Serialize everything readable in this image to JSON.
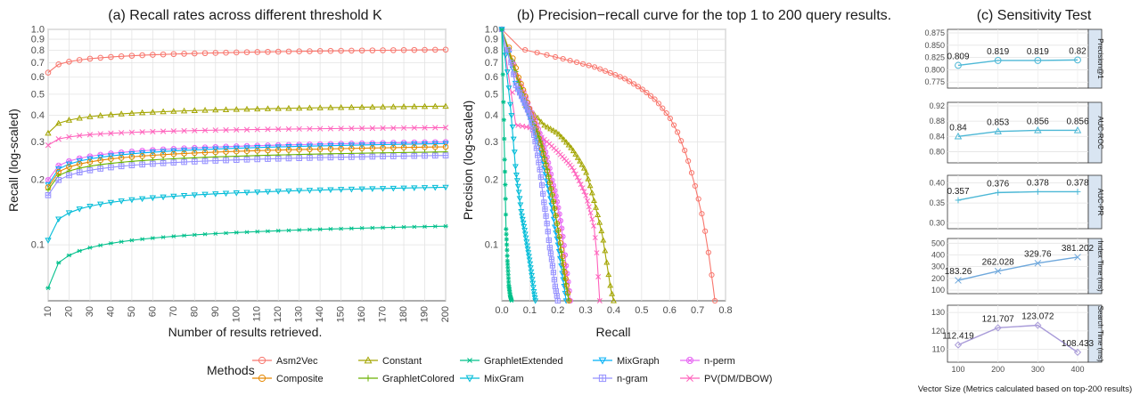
{
  "chart_data": [
    {
      "type": "line",
      "title": "(a) Recall rates across different threshold K",
      "xlabel": "Number of results retrieved.",
      "ylabel": "Recall (log-scaled)",
      "y_scale": "log",
      "xlim": [
        10,
        200
      ],
      "ylim": [
        0.055,
        1.0
      ],
      "x_ticks": [
        "10",
        "20",
        "30",
        "40",
        "50",
        "60",
        "70",
        "80",
        "90",
        "100",
        "110",
        "120",
        "130",
        "140",
        "150",
        "160",
        "170",
        "180",
        "190",
        "200"
      ],
      "y_ticks": [
        "0.1",
        "0.2",
        "0.3",
        "0.4",
        "0.5",
        "0.6",
        "0.7",
        "0.8",
        "0.9",
        "1.0"
      ],
      "grid": true,
      "series": [
        {
          "name": "Asm2Vec",
          "color": "#F8766D",
          "marker": "circle",
          "start": 0.63,
          "end": 0.805
        },
        {
          "name": "Constant",
          "color": "#A3A500",
          "marker": "triangle",
          "start": 0.33,
          "end": 0.44
        },
        {
          "name": "PV(DM/DBOW)",
          "color": "#FF62BC",
          "marker": "cross",
          "start": 0.29,
          "end": 0.35
        },
        {
          "name": "n-perm",
          "color": "#E76BF3",
          "marker": "circle-x",
          "start": 0.2,
          "end": 0.3
        },
        {
          "name": "MixGraph",
          "color": "#00B0F6",
          "marker": "triangle-down",
          "start": 0.19,
          "end": 0.295
        },
        {
          "name": "Composite",
          "color": "#E58700",
          "marker": "circle",
          "start": 0.185,
          "end": 0.285
        },
        {
          "name": "GraphletColored",
          "color": "#6BB100",
          "marker": "plus",
          "start": 0.18,
          "end": 0.27
        },
        {
          "name": "n-gram",
          "color": "#9590FF",
          "marker": "square-plus",
          "start": 0.17,
          "end": 0.26
        },
        {
          "name": "MixGram",
          "color": "#00BCD8",
          "marker": "triangle-down",
          "start": 0.105,
          "end": 0.185
        },
        {
          "name": "GraphletExtended",
          "color": "#00C08B",
          "marker": "asterisk",
          "start": 0.063,
          "end": 0.122
        }
      ]
    },
    {
      "type": "line",
      "title": "(b) Precision−recall curve for the top 1 to 200 query results.",
      "xlabel": "Recall",
      "ylabel": "Precision (log-scaled)",
      "y_scale": "log",
      "xlim": [
        0,
        0.8
      ],
      "ylim": [
        0.055,
        1.0
      ],
      "x_ticks": [
        "0.0",
        "0.1",
        "0.2",
        "0.3",
        "0.4",
        "0.5",
        "0.6",
        "0.7",
        "0.8"
      ],
      "y_ticks": [
        "0.1",
        "0.2",
        "0.3",
        "0.4",
        "0.5",
        "0.6",
        "0.7",
        "0.8",
        "0.9",
        "1.0"
      ],
      "grid": true,
      "series": [
        {
          "name": "Asm2Vec",
          "color": "#F8766D",
          "x": [
            0.0,
            0.07,
            0.2,
            0.33,
            0.44,
            0.5,
            0.55,
            0.6,
            0.63,
            0.66,
            0.69,
            0.72,
            0.74,
            0.755,
            0.762
          ],
          "y": [
            1.0,
            0.81,
            0.74,
            0.67,
            0.59,
            0.53,
            0.47,
            0.39,
            0.33,
            0.26,
            0.19,
            0.13,
            0.09,
            0.065,
            0.055
          ]
        },
        {
          "name": "Constant",
          "color": "#A3A500",
          "x": [
            0.0,
            0.08,
            0.15,
            0.2,
            0.25,
            0.3,
            0.33,
            0.36,
            0.38,
            0.39,
            0.4
          ],
          "y": [
            1.0,
            0.45,
            0.36,
            0.33,
            0.28,
            0.22,
            0.16,
            0.11,
            0.075,
            0.062,
            0.055
          ]
        },
        {
          "name": "PV(DM/DBOW)",
          "color": "#FF62BC",
          "x": [
            0.0,
            0.05,
            0.1,
            0.15,
            0.2,
            0.25,
            0.3,
            0.33,
            0.34,
            0.345,
            0.35
          ],
          "y": [
            1.0,
            0.36,
            0.35,
            0.31,
            0.27,
            0.23,
            0.17,
            0.12,
            0.09,
            0.07,
            0.055
          ]
        },
        {
          "name": "n-perm",
          "color": "#E76BF3",
          "x": [
            0.0,
            0.05,
            0.1,
            0.15,
            0.18,
            0.21,
            0.23,
            0.245
          ],
          "y": [
            1.0,
            0.62,
            0.43,
            0.29,
            0.2,
            0.13,
            0.08,
            0.055
          ]
        },
        {
          "name": "MixGraph",
          "color": "#00B0F6",
          "x": [
            0.0,
            0.05,
            0.09,
            0.13,
            0.16,
            0.19,
            0.215,
            0.23
          ],
          "y": [
            1.0,
            0.55,
            0.42,
            0.3,
            0.2,
            0.12,
            0.075,
            0.055
          ]
        },
        {
          "name": "Composite",
          "color": "#E58700",
          "x": [
            0.0,
            0.06,
            0.1,
            0.14,
            0.17,
            0.2,
            0.225,
            0.24
          ],
          "y": [
            1.0,
            0.6,
            0.42,
            0.29,
            0.2,
            0.12,
            0.075,
            0.055
          ]
        },
        {
          "name": "GraphletColored",
          "color": "#6BB100",
          "x": [
            0.0,
            0.06,
            0.1,
            0.14,
            0.17,
            0.2,
            0.225,
            0.24
          ],
          "y": [
            1.0,
            0.57,
            0.4,
            0.3,
            0.2,
            0.12,
            0.07,
            0.055
          ]
        },
        {
          "name": "n-gram",
          "color": "#9590FF",
          "x": [
            0.0,
            0.05,
            0.1,
            0.13,
            0.15,
            0.17,
            0.19,
            0.2
          ],
          "y": [
            1.0,
            0.55,
            0.4,
            0.25,
            0.16,
            0.1,
            0.065,
            0.055
          ]
        },
        {
          "name": "MixGram",
          "color": "#00BCD8",
          "x": [
            0.0,
            0.03,
            0.05,
            0.07,
            0.09,
            0.105,
            0.115,
            0.12
          ],
          "y": [
            1.0,
            0.45,
            0.22,
            0.14,
            0.1,
            0.075,
            0.06,
            0.055
          ]
        },
        {
          "name": "GraphletExtended",
          "color": "#00C08B",
          "x": [
            0.0,
            0.005,
            0.01,
            0.015,
            0.02,
            0.025,
            0.03,
            0.035
          ],
          "y": [
            1.0,
            0.5,
            0.25,
            0.12,
            0.085,
            0.065,
            0.058,
            0.055
          ]
        }
      ]
    },
    {
      "type": "line",
      "title": "(c) Sensitivity Test",
      "xlabel": "Vector Size (Metrics calculated based on top-200 results)",
      "x": [
        100,
        200,
        300,
        400
      ],
      "facets": [
        {
          "strip": "Precision@1",
          "color": "#4DB8D6",
          "marker": "circle",
          "ylim": [
            0.77,
            0.875
          ],
          "ticks": [
            "0.775",
            "0.800",
            "0.825",
            "0.850",
            "0.875"
          ],
          "values": [
            0.809,
            0.819,
            0.819,
            0.82
          ],
          "labels": [
            "0.809",
            "0.819",
            "0.819",
            "0.82"
          ]
        },
        {
          "strip": "AUC-ROC",
          "color": "#4DB8D6",
          "marker": "triangle",
          "ylim": [
            0.78,
            0.92
          ],
          "ticks": [
            "0.80",
            "0.84",
            "0.88",
            "0.92"
          ],
          "values": [
            0.84,
            0.853,
            0.856,
            0.856
          ],
          "labels": [
            "0.84",
            "0.853",
            "0.856",
            "0.856"
          ]
        },
        {
          "strip": "AUC-PR",
          "color": "#4DB8D6",
          "marker": "plus",
          "ylim": [
            0.295,
            0.41
          ],
          "ticks": [
            "0.30",
            "0.35",
            "0.40"
          ],
          "values": [
            0.357,
            0.376,
            0.378,
            0.378
          ],
          "labels": [
            "0.357",
            "0.376",
            "0.378",
            "0.378"
          ]
        },
        {
          "strip": "Index Time (ms)",
          "color": "#6FA8DC",
          "marker": "cross",
          "ylim": [
            100,
            510
          ],
          "ticks": [
            "100",
            "200",
            "300",
            "400",
            "500"
          ],
          "values": [
            183.26,
            262.028,
            329.76,
            381.202
          ],
          "labels": [
            "183.26",
            "262.028",
            "329.76",
            "381.202"
          ]
        },
        {
          "strip": "Search Time (ms)",
          "color": "#A99BD9",
          "marker": "diamond",
          "ylim": [
            105,
            132
          ],
          "ticks": [
            "110",
            "120",
            "130"
          ],
          "values": [
            112.419,
            121.707,
            123.072,
            108.433
          ],
          "labels": [
            "112.419",
            "121.707",
            "123.072",
            "108.433"
          ]
        }
      ],
      "x_ticks": [
        "100",
        "200",
        "300",
        "400"
      ]
    }
  ],
  "legend": {
    "title": "Methods",
    "placement": "bottom",
    "items": [
      {
        "name": "Asm2Vec",
        "color": "#F8766D",
        "marker": "circle"
      },
      {
        "name": "Composite",
        "color": "#E58700",
        "marker": "circle"
      },
      {
        "name": "Constant",
        "color": "#A3A500",
        "marker": "triangle"
      },
      {
        "name": "GraphletColored",
        "color": "#6BB100",
        "marker": "plus"
      },
      {
        "name": "GraphletExtended",
        "color": "#00C08B",
        "marker": "asterisk"
      },
      {
        "name": "MixGram",
        "color": "#00BCD8",
        "marker": "triangle-down"
      },
      {
        "name": "MixGraph",
        "color": "#00B0F6",
        "marker": "triangle-down"
      },
      {
        "name": "n-gram",
        "color": "#9590FF",
        "marker": "square-plus"
      },
      {
        "name": "n-perm",
        "color": "#E76BF3",
        "marker": "circle-x"
      },
      {
        "name": "PV(DM/DBOW)",
        "color": "#FF62BC",
        "marker": "cross"
      }
    ]
  }
}
